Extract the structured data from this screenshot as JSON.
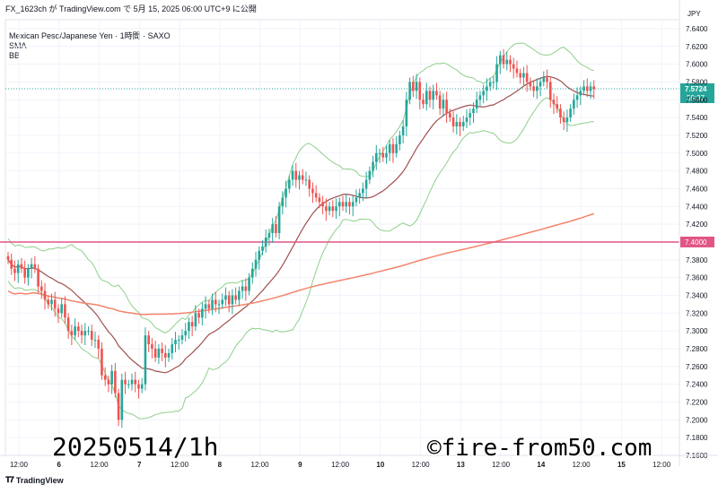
{
  "header": {
    "text": "FX_1623ch が TradingView.com で 5月 15, 2025 06:00 UTC+9 に公開"
  },
  "legend": {
    "symbol": "Mexican Peso/Japanese Yen · 1時間 · SAXO",
    "indicator1": "SMA",
    "indicator2": "BB"
  },
  "footer": {
    "brand": "TradingView",
    "logo": "tradingview-logo-icon"
  },
  "colors": {
    "up": "#26a69a",
    "down": "#ef5350",
    "sma": "#a0504f",
    "bb": "#8fd08a",
    "ma_long": "#f4846c",
    "level": "#e05585",
    "grid": "#f0f3fa"
  },
  "chart_data": {
    "type": "candlestick",
    "currency": "JPY",
    "ylim": [
      7.16,
      7.65
    ],
    "y_ticks": [
      "7.6400",
      "7.6200",
      "7.6000",
      "7.5800",
      "7.5600",
      "7.5400",
      "7.5200",
      "7.5000",
      "7.4800",
      "7.4600",
      "7.4400",
      "7.4200",
      "7.3800",
      "7.3600",
      "7.3400",
      "7.3200",
      "7.3000",
      "7.2800",
      "7.2600",
      "7.2400",
      "7.2200",
      "7.2000",
      "7.1800",
      "7.1600"
    ],
    "x_ticks": [
      {
        "label": "12:00",
        "t": 0
      },
      {
        "label": "6",
        "t": 12
      },
      {
        "label": "12:00",
        "t": 24
      },
      {
        "label": "7",
        "t": 36
      },
      {
        "label": "12:00",
        "t": 48
      },
      {
        "label": "8",
        "t": 60
      },
      {
        "label": "12:00",
        "t": 72
      },
      {
        "label": "9",
        "t": 84
      },
      {
        "label": "12:00",
        "t": 96
      },
      {
        "label": "10",
        "t": 108
      },
      {
        "label": "12:00",
        "t": 120
      },
      {
        "label": "13",
        "t": 132
      },
      {
        "label": "12:00",
        "t": 144
      },
      {
        "label": "14",
        "t": 156
      },
      {
        "label": "12:00",
        "t": 168
      },
      {
        "label": "15",
        "t": 180
      },
      {
        "label": "12:00",
        "t": 192
      }
    ],
    "close": [
      7.38,
      7.37,
      7.365,
      7.375,
      7.37,
      7.36,
      7.37,
      7.375,
      7.37,
      7.35,
      7.345,
      7.335,
      7.33,
      7.335,
      7.325,
      7.32,
      7.33,
      7.315,
      7.3,
      7.295,
      7.305,
      7.3,
      7.295,
      7.3,
      7.3,
      7.29,
      7.29,
      7.28,
      7.25,
      7.245,
      7.24,
      7.255,
      7.23,
      7.2,
      7.245,
      7.24,
      7.24,
      7.245,
      7.24,
      7.235,
      7.24,
      7.295,
      7.285,
      7.28,
      7.27,
      7.28,
      7.275,
      7.27,
      7.275,
      7.285,
      7.29,
      7.29,
      7.295,
      7.3,
      7.31,
      7.305,
      7.32,
      7.315,
      7.325,
      7.33,
      7.325,
      7.335,
      7.33,
      7.33,
      7.335,
      7.34,
      7.33,
      7.34,
      7.335,
      7.345,
      7.35,
      7.345,
      7.36,
      7.37,
      7.38,
      7.39,
      7.395,
      7.405,
      7.41,
      7.42,
      7.41,
      7.44,
      7.45,
      7.46,
      7.47,
      7.48,
      7.47,
      7.475,
      7.47,
      7.47,
      7.46,
      7.455,
      7.45,
      7.445,
      7.44,
      7.435,
      7.44,
      7.435,
      7.44,
      7.445,
      7.44,
      7.445,
      7.44,
      7.445,
      7.45,
      7.455,
      7.46,
      7.47,
      7.48,
      7.49,
      7.5,
      7.5,
      7.495,
      7.5,
      7.51,
      7.5,
      7.51,
      7.52,
      7.53,
      7.56,
      7.58,
      7.57,
      7.58,
      7.56,
      7.555,
      7.57,
      7.56,
      7.57,
      7.565,
      7.55,
      7.56,
      7.545,
      7.54,
      7.53,
      7.535,
      7.53,
      7.535,
      7.54,
      7.545,
      7.55,
      7.56,
      7.565,
      7.57,
      7.575,
      7.58,
      7.58,
      7.6,
      7.61,
      7.6,
      7.605,
      7.6,
      7.595,
      7.59,
      7.585,
      7.59,
      7.58,
      7.575,
      7.57,
      7.575,
      7.58,
      7.585,
      7.58,
      7.56,
      7.555,
      7.55,
      7.54,
      7.535,
      7.54,
      7.55,
      7.56,
      7.565,
      7.57,
      7.575,
      7.57,
      7.575,
      7.572
    ],
    "levels": [
      {
        "label": "7.4000",
        "value": 7.4
      }
    ],
    "last_price": {
      "label": "7.5724",
      "countdown": "59:37",
      "value": 7.5724
    },
    "series": [
      {
        "name": "SMA"
      },
      {
        "name": "BB"
      }
    ],
    "watermark": "20250514/1h",
    "copyright": "©fire-from50.com"
  }
}
